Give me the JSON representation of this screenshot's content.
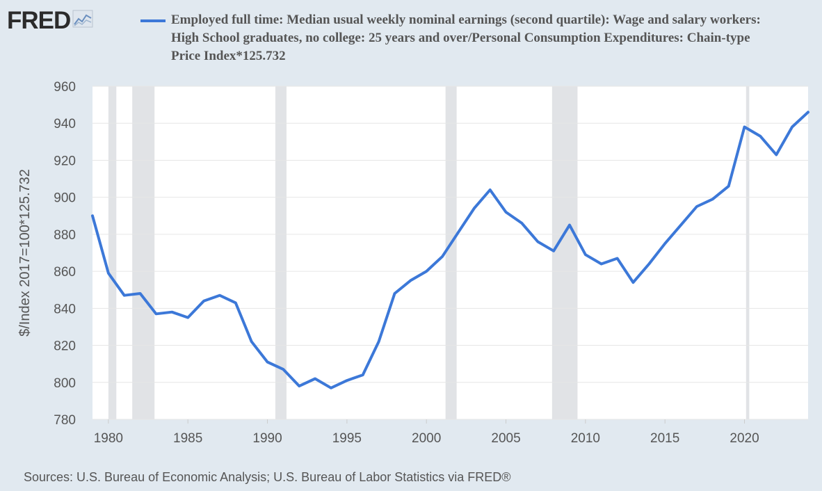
{
  "logo": {
    "text": "FRED",
    "icon": "line-chart-icon"
  },
  "legend": {
    "color": "#3c78d8",
    "label": "Employed full time: Median usual weekly nominal earnings (second quartile): Wage and salary workers: High School graduates, no college: 25 years and over/Personal Consumption Expenditures: Chain-type Price Index*125.732"
  },
  "source": "Sources: U.S. Bureau of Economic Analysis; U.S. Bureau of Labor Statistics via FRED®",
  "chart_data": {
    "type": "line",
    "ylabel": "$/Index 2017=100*125.732",
    "xlabel": "",
    "xlim": [
      1979,
      2024
    ],
    "ylim": [
      780,
      960
    ],
    "x_ticks": [
      "1980",
      "1985",
      "1990",
      "1995",
      "2000",
      "2005",
      "2010",
      "2015",
      "2020"
    ],
    "y_ticks": [
      "780",
      "800",
      "820",
      "840",
      "860",
      "880",
      "900",
      "920",
      "940",
      "960"
    ],
    "grid": true,
    "recessions": [
      [
        1980.0,
        1980.5
      ],
      [
        1981.5,
        1982.9
      ],
      [
        1990.5,
        1991.2
      ],
      [
        2001.2,
        2001.9
      ],
      [
        2007.9,
        2009.5
      ],
      [
        2020.1,
        2020.3
      ]
    ],
    "series": [
      {
        "color": "#3c78d8",
        "x": [
          1979,
          1980,
          1981,
          1982,
          1983,
          1984,
          1985,
          1986,
          1987,
          1988,
          1989,
          1990,
          1991,
          1992,
          1993,
          1994,
          1995,
          1996,
          1997,
          1998,
          1999,
          2000,
          2001,
          2002,
          2003,
          2004,
          2005,
          2006,
          2007,
          2008,
          2009,
          2010,
          2011,
          2012,
          2013,
          2014,
          2015,
          2016,
          2017,
          2018,
          2019,
          2020,
          2021,
          2022,
          2023,
          2024
        ],
        "values": [
          890,
          859,
          847,
          848,
          837,
          838,
          835,
          844,
          847,
          843,
          822,
          811,
          807,
          798,
          802,
          797,
          801,
          804,
          822,
          848,
          855,
          860,
          868,
          881,
          894,
          904,
          892,
          886,
          876,
          871,
          885,
          869,
          864,
          867,
          854,
          864,
          875,
          885,
          895,
          899,
          906,
          938,
          933,
          923,
          938,
          946
        ]
      }
    ]
  }
}
